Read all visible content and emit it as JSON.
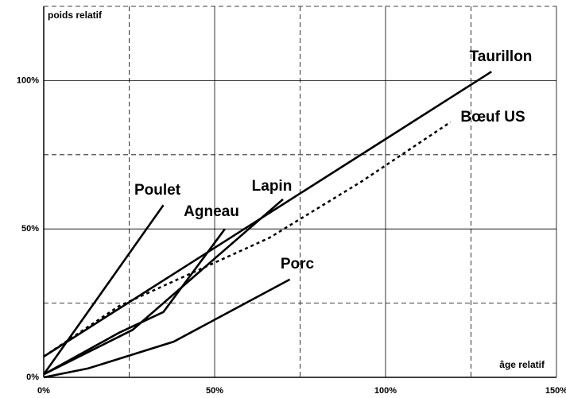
{
  "chart_data": {
    "type": "line",
    "x_label": "âge relatif",
    "y_label": "poids relatif",
    "xlim": [
      0,
      150
    ],
    "ylim": [
      0,
      125
    ],
    "xticks": [
      {
        "value": 0,
        "label": "0%"
      },
      {
        "value": 50,
        "label": "50%"
      },
      {
        "value": 100,
        "label": "100%"
      },
      {
        "value": 150,
        "label": "150%"
      }
    ],
    "yticks": [
      {
        "value": 0,
        "label": "0%"
      },
      {
        "value": 50,
        "label": "50%"
      },
      {
        "value": 100,
        "label": "100%"
      }
    ],
    "xminor_ticks": [
      25,
      75,
      125
    ],
    "yminor_ticks": [
      25,
      75,
      125
    ],
    "grid": true,
    "series": [
      {
        "name": "Taurillon",
        "color": "#000000",
        "dashed": false,
        "x": [
          0,
          131
        ],
        "values": [
          7,
          103
        ]
      },
      {
        "name": "Bœuf US",
        "color": "#000000",
        "dashed": true,
        "x": [
          0,
          22,
          66,
          93,
          119
        ],
        "values": [
          7,
          24,
          47,
          66,
          86
        ]
      },
      {
        "name": "Poulet",
        "color": "#000000",
        "dashed": false,
        "x": [
          0,
          35
        ],
        "values": [
          1,
          58
        ]
      },
      {
        "name": "Agneau",
        "color": "#000000",
        "dashed": false,
        "x": [
          0,
          22,
          35,
          53
        ],
        "values": [
          1,
          15,
          22,
          50
        ]
      },
      {
        "name": "Lapin",
        "color": "#000000",
        "dashed": false,
        "x": [
          0,
          26,
          70
        ],
        "values": [
          1,
          16,
          60
        ]
      },
      {
        "name": "Porc",
        "color": "#000000",
        "dashed": false,
        "x": [
          0,
          13,
          38,
          72
        ],
        "values": [
          0,
          3,
          12,
          33
        ]
      }
    ]
  }
}
